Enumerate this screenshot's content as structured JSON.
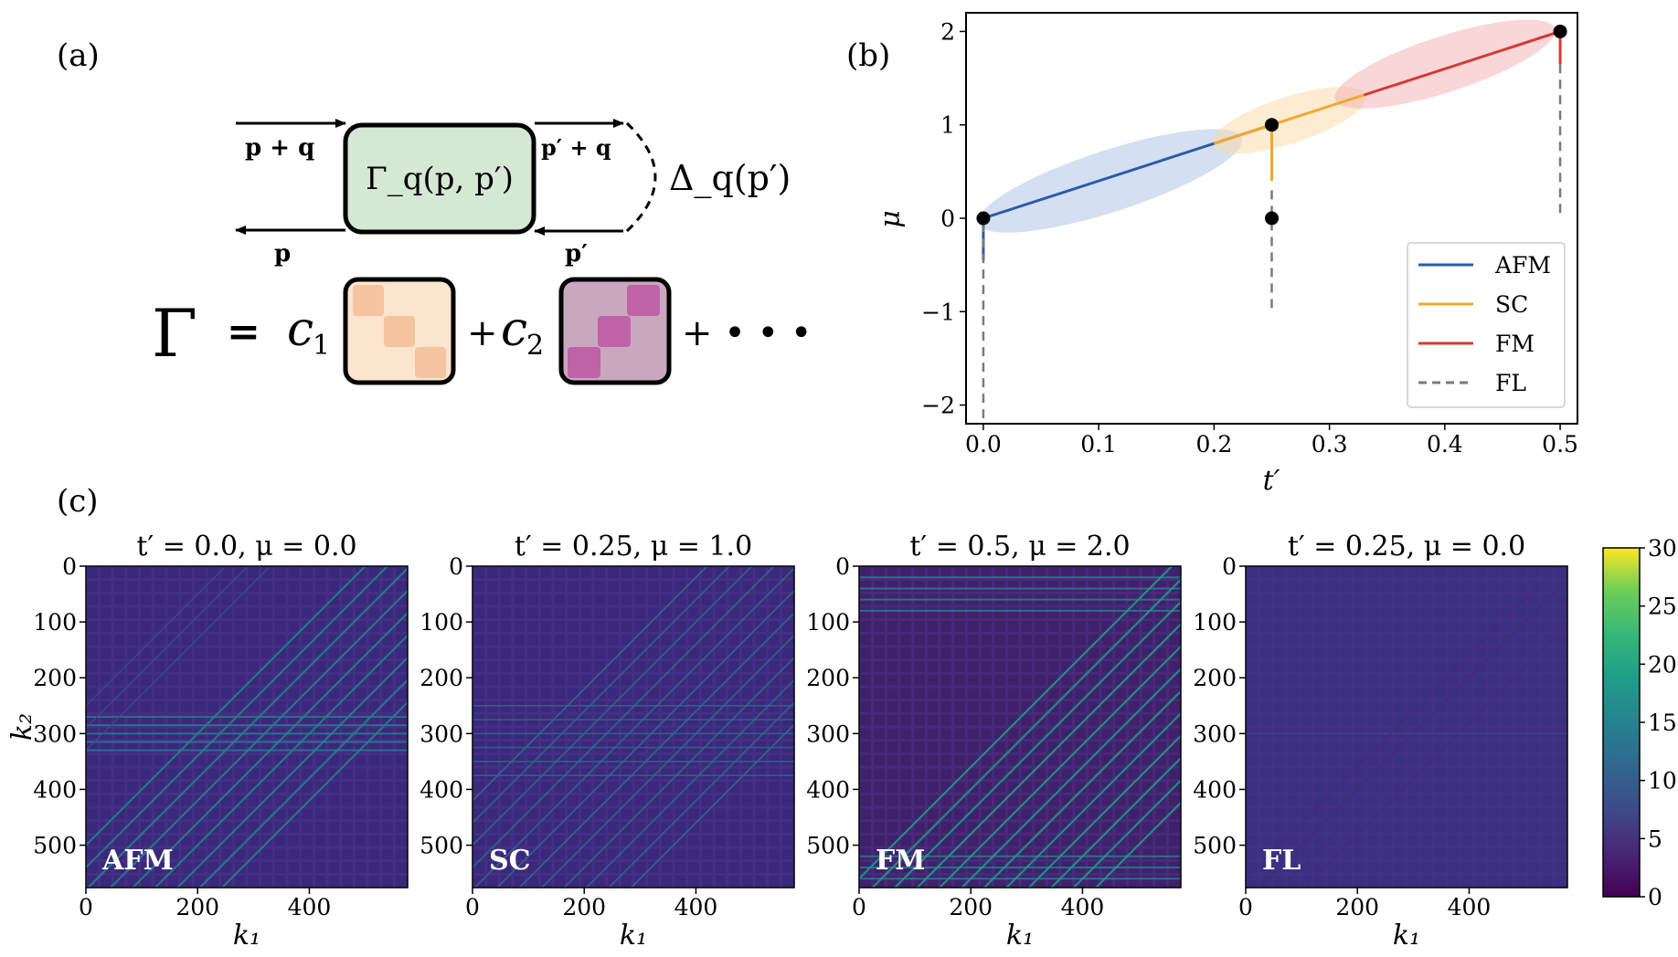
{
  "panel_labels": {
    "a": "(a)",
    "b": "(b)",
    "c": "(c)"
  },
  "diagram": {
    "in_top": "p + q",
    "in_bottom": "p",
    "vertex": "Γ_q(p, p′)",
    "out_top": "p′ + q",
    "out_bottom": "p′",
    "gap": "Δ_q(p′)",
    "expansion": {
      "lhs": "Γ",
      "eq": "=",
      "c1": "c",
      "c1_sub": "1",
      "plus": "+",
      "c2": "c",
      "c2_sub": "2",
      "dots": "+ • • •"
    },
    "colors": {
      "vertex_fill": "#d5e8d4",
      "block1_bg": "#fbe5cf",
      "block1_sq": "#f5c4a0",
      "block2_bg": "#c9a8bf",
      "block2_sq": "#c062a8"
    }
  },
  "chart_data": [
    {
      "type": "line",
      "panel": "b",
      "xlabel": "t′",
      "ylabel": "μ",
      "xlim": [
        -0.015,
        0.515
      ],
      "ylim": [
        -2.2,
        2.2
      ],
      "xticks": [
        "0.0",
        "0.1",
        "0.2",
        "0.3",
        "0.4",
        "0.5"
      ],
      "xtick_values": [
        0,
        0.1,
        0.2,
        0.3,
        0.4,
        0.5
      ],
      "yticks": [
        "−2",
        "−1",
        "0",
        "1",
        "2"
      ],
      "ytick_values": [
        -2,
        -1,
        0,
        1,
        2
      ],
      "series": [
        {
          "name": "AFM",
          "color": "#2a5ca8",
          "style": "solid",
          "segments": [
            [
              [
                0.0,
                0.0
              ],
              [
                0.25,
                1.0
              ]
            ],
            [
              [
                0.0,
                0.0
              ],
              [
                0.0,
                -0.45
              ]
            ]
          ]
        },
        {
          "name": "SC",
          "color": "#f0a830",
          "style": "solid",
          "segments": [
            [
              [
                0.2,
                0.8
              ],
              [
                0.33,
                1.32
              ]
            ],
            [
              [
                0.25,
                1.0
              ],
              [
                0.25,
                0.4
              ]
            ]
          ]
        },
        {
          "name": "FM",
          "color": "#d43a32",
          "style": "solid",
          "segments": [
            [
              [
                0.33,
                1.32
              ],
              [
                0.5,
                2.0
              ]
            ],
            [
              [
                0.5,
                2.0
              ],
              [
                0.5,
                1.65
              ]
            ]
          ]
        },
        {
          "name": "FL",
          "color": "#7a7a7a",
          "style": "dashed",
          "segments": [
            [
              [
                0.0,
                -0.05
              ],
              [
                0.0,
                -2.2
              ]
            ],
            [
              [
                0.25,
                0.3
              ],
              [
                0.25,
                -1.0
              ]
            ],
            [
              [
                0.5,
                1.65
              ],
              [
                0.5,
                0.0
              ]
            ]
          ]
        }
      ],
      "points": [
        [
          0.0,
          0.0
        ],
        [
          0.25,
          1.0
        ],
        [
          0.25,
          0.0
        ],
        [
          0.5,
          2.0
        ]
      ],
      "regions": [
        {
          "name": "AFM",
          "color": "#a9c1e3",
          "center": [
            0.11,
            0.4
          ],
          "rx": 0.12,
          "ry": 0.33
        },
        {
          "name": "SC",
          "color": "#fbd9a3",
          "center": [
            0.265,
            1.05
          ],
          "rx": 0.07,
          "ry": 0.25
        },
        {
          "name": "FM",
          "color": "#f3aeb2",
          "center": [
            0.4,
            1.65
          ],
          "rx": 0.1,
          "ry": 0.3
        }
      ],
      "legend": "bottom-right"
    },
    {
      "type": "heatmap",
      "panel": "c",
      "xlabel": "k₁",
      "ylabel": "k₂",
      "xlim": [
        0,
        576
      ],
      "ylim": [
        576,
        0
      ],
      "xticks": [
        "0",
        "200",
        "400"
      ],
      "xtick_values": [
        0,
        200,
        400
      ],
      "yticks": [
        "0",
        "100",
        "200",
        "300",
        "400",
        "500"
      ],
      "ytick_values": [
        0,
        100,
        200,
        300,
        400,
        500
      ],
      "colorbar": {
        "min": 0,
        "max": 30,
        "ticks": [
          "0",
          "5",
          "10",
          "15",
          "20",
          "25",
          "30"
        ],
        "tick_values": [
          0,
          5,
          10,
          15,
          20,
          25,
          30
        ],
        "colormap": "viridis"
      },
      "maps": [
        {
          "title_lhs": "t′ = 0.0, μ = 0.0",
          "tag": "AFM",
          "pattern": "afm"
        },
        {
          "title_lhs": "t′ = 0.25, μ = 1.0",
          "tag": "SC",
          "pattern": "sc"
        },
        {
          "title_lhs": "t′ = 0.5, μ = 2.0",
          "tag": "FM",
          "pattern": "fm"
        },
        {
          "title_lhs": "t′ = 0.25, μ = 0.0",
          "tag": "FL",
          "pattern": "fl"
        }
      ]
    }
  ]
}
